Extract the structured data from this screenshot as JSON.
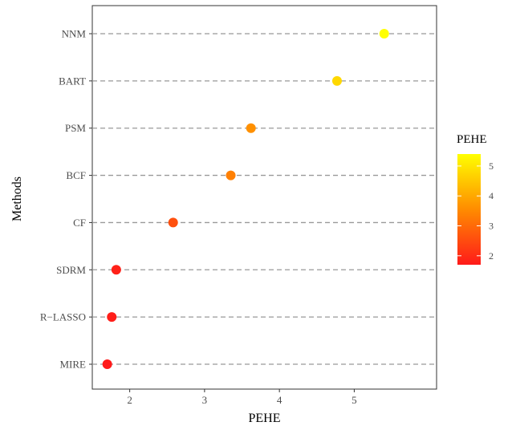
{
  "chart_data": {
    "type": "scatter",
    "title": "",
    "xlabel": "PEHE",
    "ylabel": "Methods",
    "xlim": [
      1.5,
      6.1
    ],
    "xticks": [
      2,
      3,
      4,
      5
    ],
    "categories": [
      "NNM",
      "BART",
      "PSM",
      "BCF",
      "CF",
      "SDRM",
      "R−LASSO",
      "MIRE"
    ],
    "values": [
      5.4,
      4.77,
      3.62,
      3.35,
      2.58,
      1.82,
      1.76,
      1.7
    ],
    "grid": "dashed horizontal guide per method",
    "legend": {
      "title": "PEHE",
      "placement": "right",
      "ticks": [
        2,
        3,
        4,
        5
      ],
      "range": [
        1.7,
        5.4
      ],
      "gradient": [
        "#ff0000",
        "#ff8c00",
        "#ffff00"
      ]
    }
  }
}
